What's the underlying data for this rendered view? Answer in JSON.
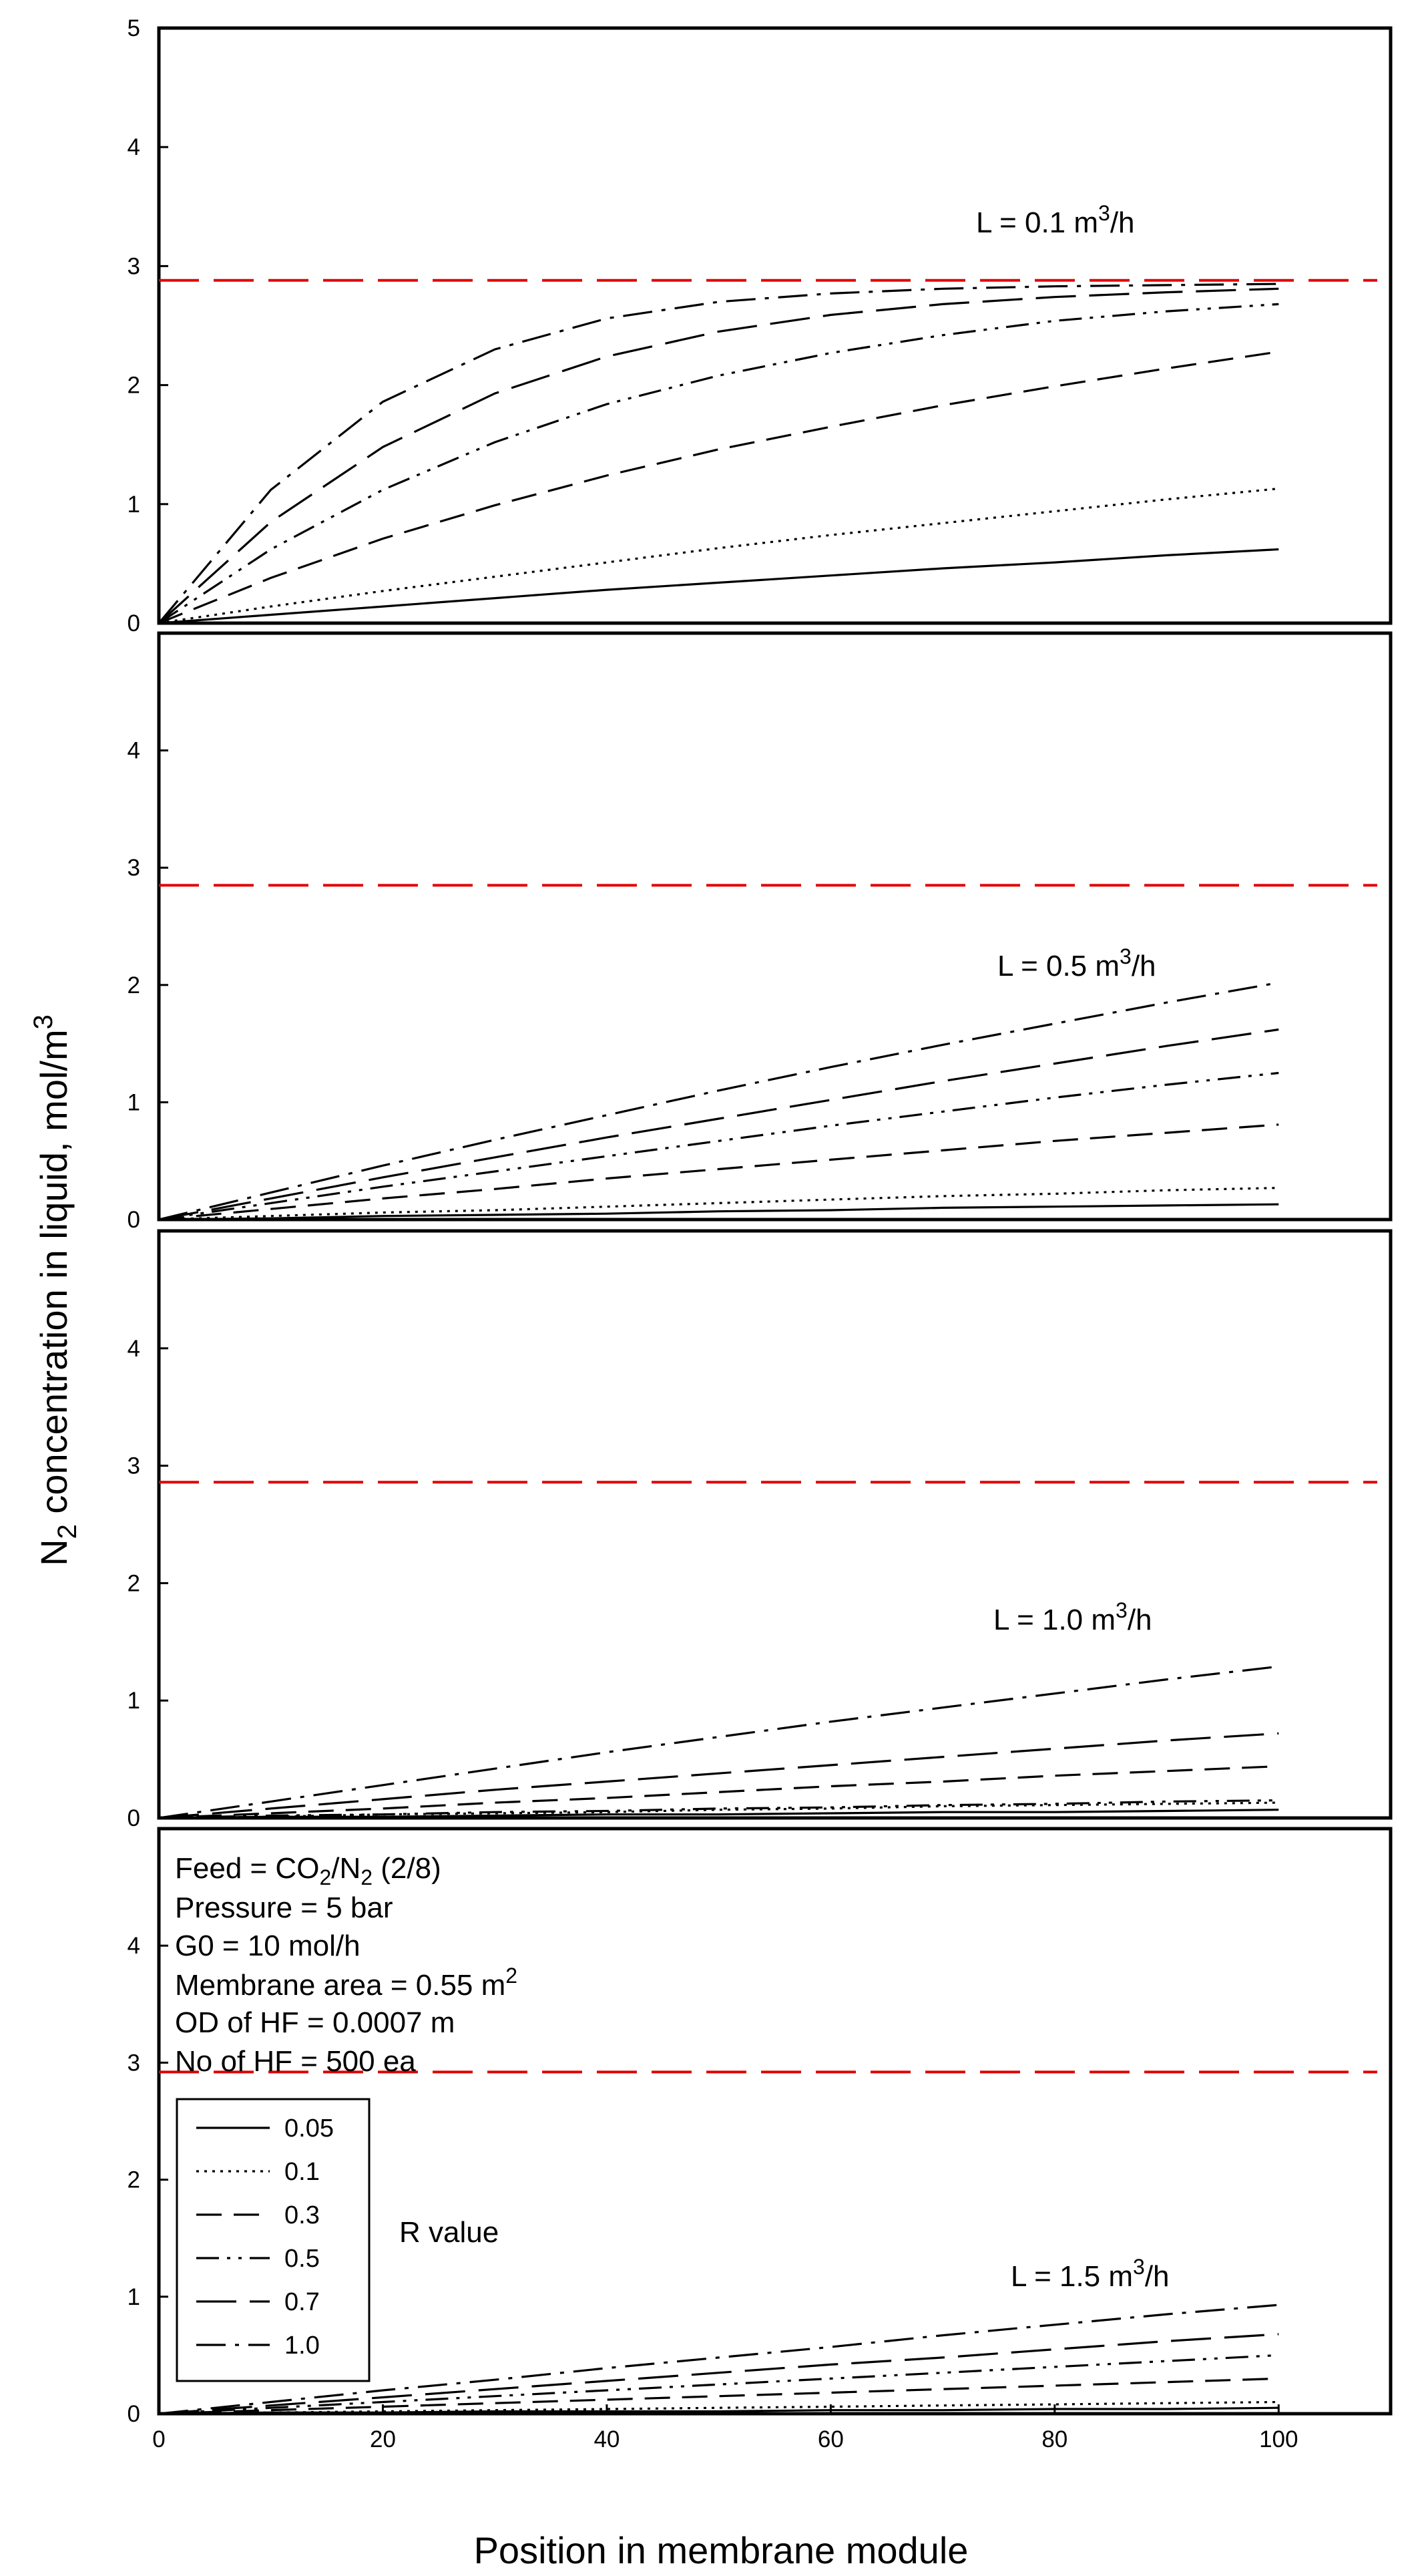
{
  "chart_data": {
    "type": "line",
    "x": [
      0,
      10,
      20,
      30,
      40,
      50,
      60,
      70,
      80,
      90,
      100
    ],
    "xlabel": "Position in membrane module",
    "ylabel": "N",
    "ylabel_sub": "2",
    "ylabel_rest": " concentration in liquid, mol/m",
    "ylabel_sup": "3",
    "xlim": [
      0,
      110
    ],
    "xticks": [
      "0",
      "20",
      "40",
      "60",
      "80",
      "100"
    ],
    "xtick_values": [
      0,
      20,
      40,
      60,
      80,
      100
    ],
    "top_ytick": "5",
    "yticks": [
      "0",
      "1",
      "2",
      "3",
      "4"
    ],
    "ytick_values": [
      0,
      1,
      2,
      3,
      4
    ],
    "legend": {
      "title": "R value",
      "entries": [
        "0.05",
        "0.1",
        "0.3",
        "0.5",
        "0.7",
        "1.0"
      ]
    },
    "conditions": {
      "feed_prefix": "Feed = CO",
      "feed_sub1": "2",
      "feed_mid": "/N",
      "feed_sub2": "2",
      "feed_suffix": " (2/8)",
      "pressure": "Pressure = 5 bar",
      "g0": "G0 = 10 mol/h",
      "area_prefix": "Membrane area = 0.55 m",
      "area_sup": "2",
      "od": "OD of HF =  0.0007 m",
      "count": "No of HF = 500 ea"
    },
    "panels": [
      {
        "label_prefix": "L = 0.1 m",
        "label_sup": "3",
        "label_suffix": "/h",
        "ylim": [
          0,
          5
        ],
        "reference_y": 2.88,
        "series": [
          {
            "name": "0.05",
            "values": [
              0,
              0.07,
              0.14,
              0.21,
              0.28,
              0.34,
              0.4,
              0.46,
              0.51,
              0.57,
              0.62
            ]
          },
          {
            "name": "0.1",
            "values": [
              0,
              0.14,
              0.27,
              0.39,
              0.51,
              0.63,
              0.74,
              0.84,
              0.94,
              1.04,
              1.13
            ]
          },
          {
            "name": "0.3",
            "values": [
              0,
              0.38,
              0.71,
              0.99,
              1.24,
              1.46,
              1.65,
              1.83,
              1.99,
              2.14,
              2.28
            ]
          },
          {
            "name": "0.5",
            "values": [
              0,
              0.62,
              1.12,
              1.52,
              1.84,
              2.08,
              2.27,
              2.42,
              2.54,
              2.62,
              2.68
            ]
          },
          {
            "name": "0.7",
            "values": [
              0,
              0.85,
              1.48,
              1.93,
              2.24,
              2.45,
              2.59,
              2.68,
              2.74,
              2.78,
              2.81
            ]
          },
          {
            "name": "1.0",
            "values": [
              0,
              1.12,
              1.86,
              2.3,
              2.56,
              2.7,
              2.77,
              2.81,
              2.83,
              2.84,
              2.85
            ]
          }
        ]
      },
      {
        "label_prefix": "L = 0.5 m",
        "label_sup": "3",
        "label_suffix": "/h",
        "ylim": [
          0,
          5
        ],
        "reference_y": 2.85,
        "series": [
          {
            "name": "0.05",
            "values": [
              0,
              0.01,
              0.03,
              0.04,
              0.05,
              0.07,
              0.08,
              0.1,
              0.11,
              0.12,
              0.13
            ]
          },
          {
            "name": "0.1",
            "values": [
              0,
              0.03,
              0.06,
              0.08,
              0.11,
              0.14,
              0.17,
              0.2,
              0.22,
              0.25,
              0.27
            ]
          },
          {
            "name": "0.3",
            "values": [
              0,
              0.09,
              0.18,
              0.26,
              0.35,
              0.43,
              0.51,
              0.59,
              0.67,
              0.74,
              0.81
            ]
          },
          {
            "name": "0.5",
            "values": [
              0,
              0.14,
              0.28,
              0.41,
              0.54,
              0.67,
              0.8,
              0.92,
              1.04,
              1.15,
              1.25
            ]
          },
          {
            "name": "0.7",
            "values": [
              0,
              0.18,
              0.36,
              0.53,
              0.7,
              0.86,
              1.02,
              1.18,
              1.33,
              1.48,
              1.62
            ]
          },
          {
            "name": "1.0",
            "values": [
              0,
              0.23,
              0.46,
              0.68,
              0.89,
              1.1,
              1.3,
              1.49,
              1.67,
              1.85,
              2.02
            ]
          }
        ]
      },
      {
        "label_prefix": "L = 1.0 m",
        "label_sup": "3",
        "label_suffix": "/h",
        "ylim": [
          0,
          5
        ],
        "reference_y": 2.86,
        "series": [
          {
            "name": "0.05",
            "values": [
              0,
              0.01,
              0.01,
              0.02,
              0.03,
              0.03,
              0.04,
              0.05,
              0.05,
              0.06,
              0.07
            ]
          },
          {
            "name": "0.1",
            "values": [
              0,
              0.01,
              0.03,
              0.04,
              0.05,
              0.07,
              0.08,
              0.1,
              0.11,
              0.12,
              0.13
            ]
          },
          {
            "name": "0.3",
            "values": [
              0,
              0.04,
              0.08,
              0.13,
              0.17,
              0.22,
              0.27,
              0.31,
              0.36,
              0.4,
              0.44
            ]
          },
          {
            "name": "0.5",
            "values": [
              0,
              0.02,
              0.03,
              0.05,
              0.06,
              0.08,
              0.09,
              0.11,
              0.12,
              0.14,
              0.15
            ]
          },
          {
            "name": "0.7",
            "values": [
              0,
              0.08,
              0.16,
              0.24,
              0.31,
              0.38,
              0.45,
              0.52,
              0.59,
              0.66,
              0.72
            ]
          },
          {
            "name": "1.0",
            "values": [
              0,
              0.14,
              0.28,
              0.42,
              0.56,
              0.69,
              0.82,
              0.94,
              1.06,
              1.18,
              1.29
            ]
          }
        ]
      },
      {
        "label_prefix": "L = 1.5 m",
        "label_sup": "3",
        "label_suffix": "/h",
        "ylim": [
          0,
          5
        ],
        "reference_y": 2.92,
        "series": [
          {
            "name": "0.05",
            "values": [
              0,
              0.01,
              0.01,
              0.02,
              0.02,
              0.02,
              0.03,
              0.03,
              0.04,
              0.04,
              0.05
            ]
          },
          {
            "name": "0.1",
            "values": [
              0,
              0.01,
              0.02,
              0.03,
              0.04,
              0.05,
              0.06,
              0.07,
              0.08,
              0.09,
              0.1
            ]
          },
          {
            "name": "0.3",
            "values": [
              0,
              0.03,
              0.06,
              0.09,
              0.12,
              0.15,
              0.18,
              0.21,
              0.24,
              0.27,
              0.3
            ]
          },
          {
            "name": "0.5",
            "values": [
              0,
              0.05,
              0.1,
              0.15,
              0.2,
              0.25,
              0.3,
              0.35,
              0.4,
              0.45,
              0.5
            ]
          },
          {
            "name": "0.7",
            "values": [
              0,
              0.07,
              0.14,
              0.21,
              0.28,
              0.35,
              0.42,
              0.48,
              0.55,
              0.62,
              0.68
            ]
          },
          {
            "name": "1.0",
            "values": [
              0,
              0.1,
              0.2,
              0.29,
              0.39,
              0.48,
              0.57,
              0.67,
              0.76,
              0.85,
              0.93
            ]
          }
        ]
      }
    ]
  }
}
